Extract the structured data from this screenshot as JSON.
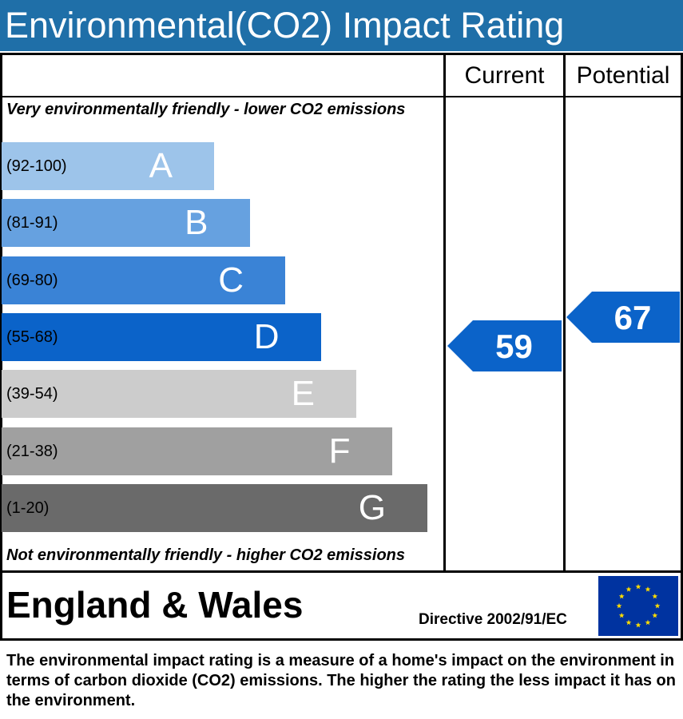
{
  "header": {
    "title": "Environmental(CO2) Impact Rating"
  },
  "columns": {
    "current": "Current",
    "potential": "Potential"
  },
  "captions": {
    "top": "Very environmentally friendly - lower CO2 emissions",
    "bottom": "Not environmentally friendly - higher CO2 emissions"
  },
  "chart_data": {
    "type": "bar",
    "bands": [
      {
        "letter": "A",
        "range": "(92-100)",
        "min": 92,
        "max": 100,
        "color": "#9dc4ea"
      },
      {
        "letter": "B",
        "range": "(81-91)",
        "min": 81,
        "max": 91,
        "color": "#66a1e0"
      },
      {
        "letter": "C",
        "range": "(69-80)",
        "min": 69,
        "max": 80,
        "color": "#3a83d6"
      },
      {
        "letter": "D",
        "range": "(55-68)",
        "min": 55,
        "max": 68,
        "color": "#0b63c9"
      },
      {
        "letter": "E",
        "range": "(39-54)",
        "min": 39,
        "max": 54,
        "color": "#cccccc"
      },
      {
        "letter": "F",
        "range": "(21-38)",
        "min": 21,
        "max": 38,
        "color": "#a0a0a0"
      },
      {
        "letter": "G",
        "range": "(1-20)",
        "min": 1,
        "max": 20,
        "color": "#6a6a6a"
      }
    ],
    "ratings": [
      {
        "column": "current",
        "value": 59,
        "label": "59"
      },
      {
        "column": "potential",
        "value": 67,
        "label": "67"
      }
    ],
    "arrow_color": "#0b63c9"
  },
  "footer": {
    "region": "England & Wales",
    "directive": "Directive 2002/91/EC",
    "flag_color": "#0033a0",
    "star_color": "#ffdd00"
  },
  "footnote": "The environmental impact rating is a measure of a home's impact on the environment in terms of carbon dioxide (CO2) emissions. The higher the rating the less impact it has on the environment."
}
